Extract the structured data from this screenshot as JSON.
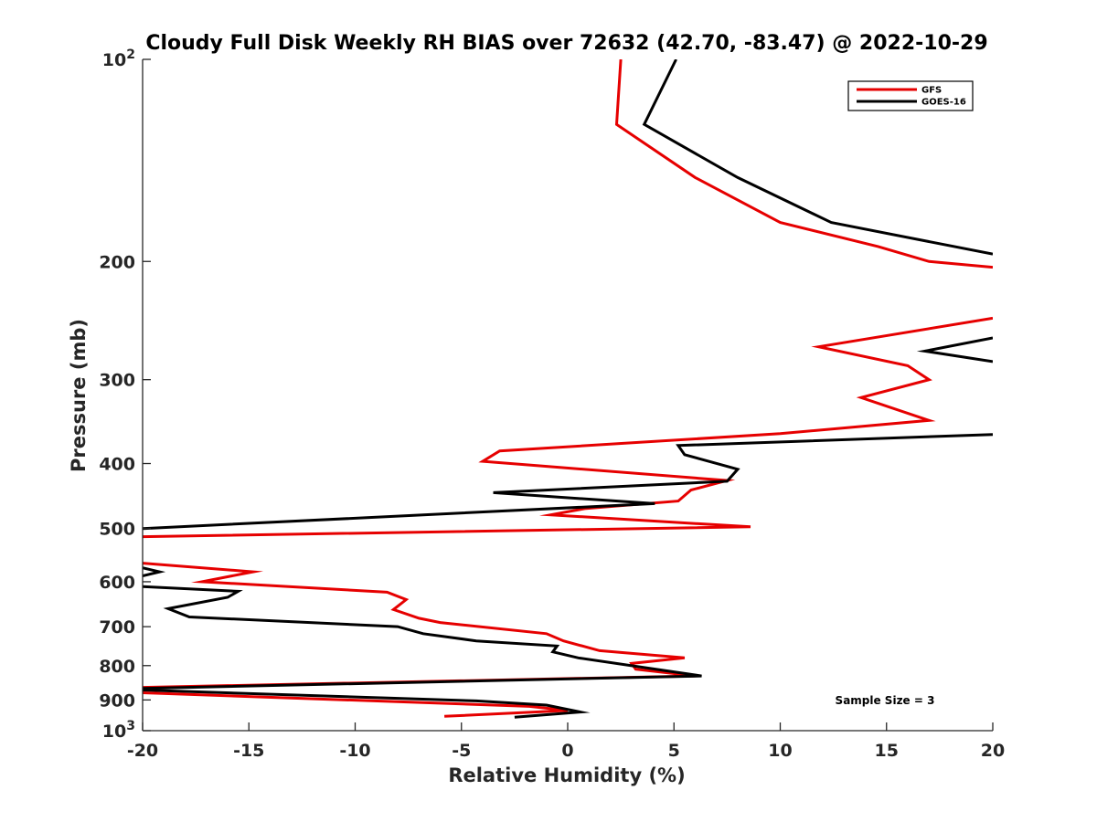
{
  "chart_data": {
    "type": "line",
    "title": "Cloudy Full Disk Weekly RH BIAS over 72632 (42.70, -83.47) @ 2022-10-29",
    "xlabel": "Relative Humidity (%)",
    "ylabel": "Pressure (mb)",
    "xlim": [
      -20,
      20
    ],
    "ylim": [
      100,
      1000
    ],
    "y_scale": "log",
    "y_reversed": true,
    "grid": false,
    "legend_position": "top-right",
    "annotation": "Sample Size = 3",
    "x_ticks": [
      -20,
      -15,
      -10,
      -5,
      0,
      5,
      10,
      15,
      20
    ],
    "x_tick_labels": [
      "-20",
      "-15",
      "-10",
      "-5",
      "0",
      "5",
      "10",
      "15",
      "20"
    ],
    "y_ticks": [
      100,
      200,
      300,
      400,
      500,
      600,
      700,
      800,
      900,
      1000
    ],
    "y_tick_labels": [
      {
        "base": "10",
        "exp": "2"
      },
      {
        "base": "200",
        "exp": ""
      },
      {
        "base": "300",
        "exp": ""
      },
      {
        "base": "400",
        "exp": ""
      },
      {
        "base": "500",
        "exp": ""
      },
      {
        "base": "600",
        "exp": ""
      },
      {
        "base": "700",
        "exp": ""
      },
      {
        "base": "800",
        "exp": ""
      },
      {
        "base": "900",
        "exp": ""
      },
      {
        "base": "10",
        "exp": "3"
      }
    ],
    "series": [
      {
        "name": "GFS",
        "color": "#e60000",
        "segments": [
          [
            [
              2.5,
              100
            ],
            [
              2.3,
              125
            ],
            [
              6.0,
              150
            ],
            [
              10.0,
              175
            ],
            [
              14.6,
              190
            ],
            [
              17.0,
              200
            ],
            [
              20.0,
              204
            ]
          ],
          [
            [
              20.0,
              243
            ],
            [
              11.8,
              268
            ],
            [
              16.0,
              286
            ],
            [
              17.0,
              300
            ],
            [
              13.8,
              319
            ],
            [
              17.0,
              345
            ],
            [
              10.0,
              361
            ],
            [
              -3.2,
              383
            ],
            [
              -4.0,
              397
            ],
            [
              7.5,
              424
            ],
            [
              5.8,
              438
            ],
            [
              5.2,
              455
            ],
            [
              0.8,
              467
            ],
            [
              -0.8,
              477
            ],
            [
              8.6,
              497
            ],
            [
              -20.0,
              514
            ]
          ],
          [
            [
              -20.0,
              563
            ],
            [
              -14.8,
              580
            ],
            [
              -17.2,
              600
            ],
            [
              -8.5,
              622
            ],
            [
              -7.6,
              638
            ],
            [
              -8.2,
              660
            ],
            [
              -7.0,
              680
            ],
            [
              -6.0,
              690
            ],
            [
              -1.0,
              717
            ],
            [
              -0.2,
              735
            ],
            [
              1.5,
              760
            ],
            [
              5.5,
              779
            ],
            [
              3.0,
              794
            ],
            [
              3.2,
              810
            ],
            [
              6.0,
              829
            ],
            [
              -20.0,
              862
            ]
          ],
          [
            [
              -20.0,
              878
            ],
            [
              -1.8,
              920
            ],
            [
              0.0,
              933
            ],
            [
              -5.8,
              952
            ]
          ]
        ]
      },
      {
        "name": "GOES-16",
        "color": "#000000",
        "segments": [
          [
            [
              5.1,
              100
            ],
            [
              3.6,
              125
            ],
            [
              8.0,
              150
            ],
            [
              12.4,
              175
            ],
            [
              20.0,
              195
            ]
          ],
          [
            [
              20.0,
              260
            ],
            [
              16.8,
              272
            ],
            [
              20.0,
              282
            ]
          ],
          [
            [
              20.0,
              362
            ],
            [
              5.2,
              376
            ],
            [
              5.5,
              388
            ],
            [
              8.0,
              408
            ],
            [
              7.5,
              425
            ],
            [
              -3.5,
              442
            ],
            [
              4.1,
              459
            ],
            [
              -20.0,
              500
            ]
          ],
          [
            [
              -20.0,
              572
            ],
            [
              -19.2,
              580
            ],
            [
              -20.0,
              588
            ]
          ],
          [
            [
              -20.0,
              610
            ],
            [
              -15.5,
              620
            ],
            [
              -16.0,
              633
            ],
            [
              -18.8,
              658
            ],
            [
              -17.8,
              677
            ],
            [
              -8.0,
              700
            ],
            [
              -6.8,
              717
            ],
            [
              -4.3,
              735
            ],
            [
              -0.5,
              748
            ],
            [
              -0.7,
              763
            ],
            [
              0.5,
              779
            ],
            [
              6.3,
              829
            ],
            [
              -20.0,
              865
            ]
          ],
          [
            [
              -20.0,
              870
            ],
            [
              -4.3,
              903
            ],
            [
              -1.0,
              916
            ],
            [
              0.6,
              938
            ],
            [
              -2.5,
              955
            ]
          ]
        ]
      }
    ]
  }
}
